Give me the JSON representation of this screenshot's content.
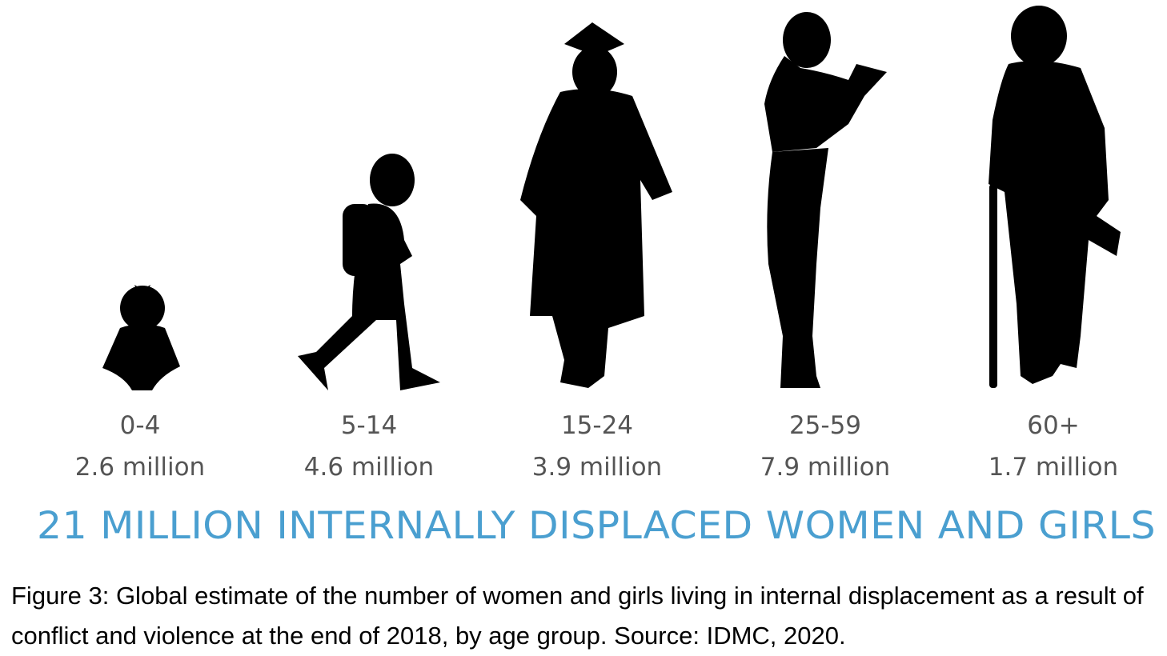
{
  "groups": [
    {
      "age": "0-4",
      "value": "2.6 million"
    },
    {
      "age": "5-14",
      "value": "4.6 million"
    },
    {
      "age": "15-24",
      "value": "3.9 million"
    },
    {
      "age": "25-59",
      "value": "7.9 million"
    },
    {
      "age": "60+",
      "value": "1.7 million"
    }
  ],
  "headline": "21 MILLION INTERNALLY DISPLACED WOMEN AND GIRLS",
  "caption": "Figure 3: Global estimate of the number of women and girls living in internal displacement as a result of conflict and violence at the end of 2018, by age group. Source: IDMC, 2020."
}
